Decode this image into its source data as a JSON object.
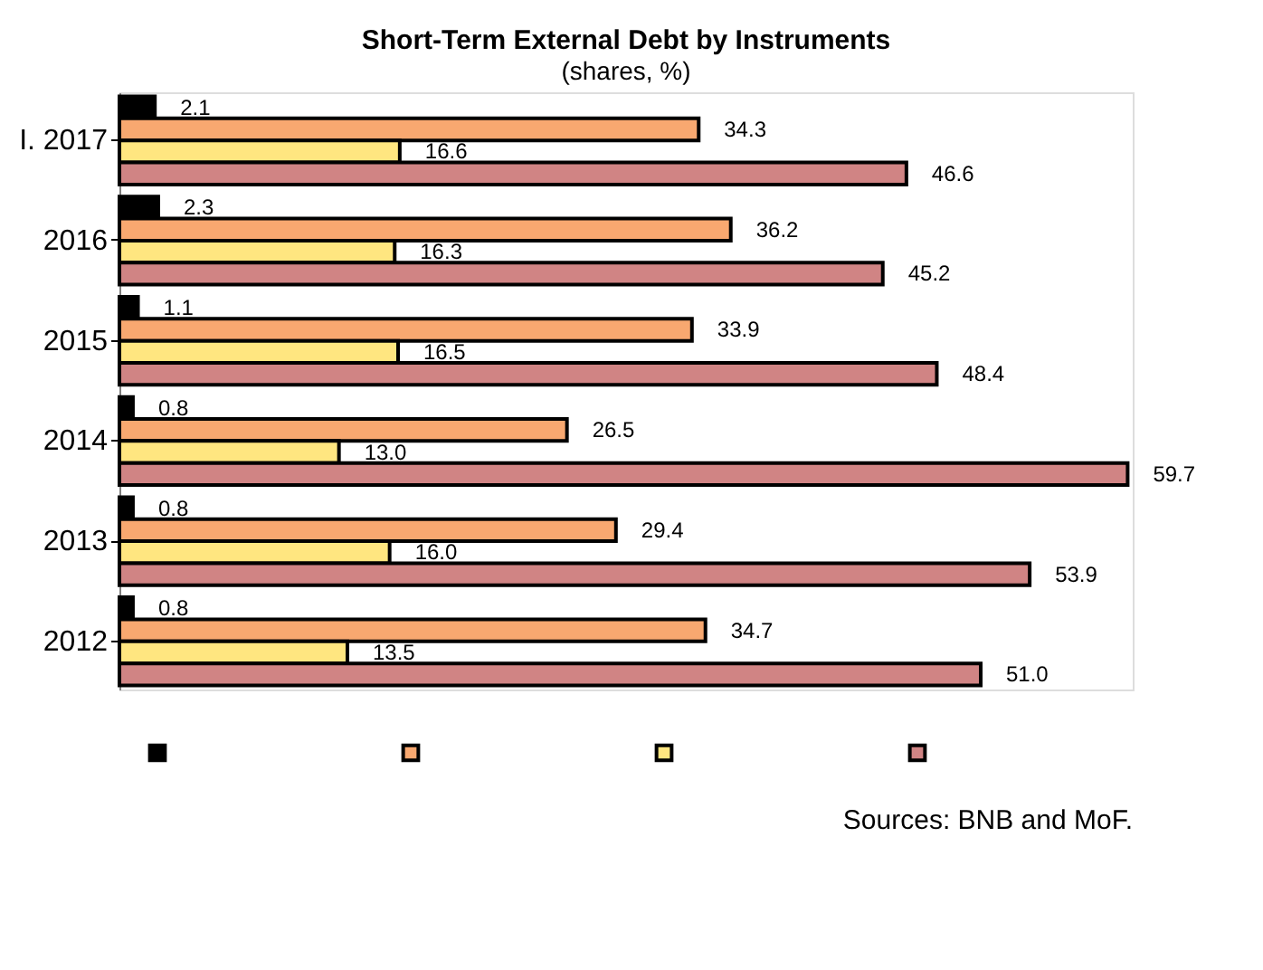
{
  "chart_data": {
    "type": "bar",
    "orientation": "horizontal",
    "title": "Short-Term External Debt by Instruments",
    "subtitle": "(shares, %)",
    "categories": [
      "I. 2017",
      "2016",
      "2015",
      "2014",
      "2013",
      "2012"
    ],
    "series": [
      {
        "color": "#000000",
        "values": [
          2.1,
          2.3,
          1.1,
          0.8,
          0.8,
          0.8
        ],
        "value_labels": [
          "2.1",
          "2.3",
          "1.1",
          "0.8",
          "0.8",
          "0.8"
        ]
      },
      {
        "color": "#f8a870",
        "values": [
          34.3,
          36.2,
          33.9,
          26.5,
          29.4,
          34.7
        ],
        "value_labels": [
          "34.3",
          "36.2",
          "33.9",
          "26.5",
          "29.4",
          "34.7"
        ]
      },
      {
        "color": "#ffe680",
        "values": [
          16.6,
          16.3,
          16.5,
          13.0,
          16.0,
          13.5
        ],
        "value_labels": [
          "16.6",
          "16.3",
          "16.5",
          "13.0",
          "16.0",
          "13.5"
        ]
      },
      {
        "color": "#d08484",
        "values": [
          46.6,
          45.2,
          48.4,
          59.7,
          53.9,
          51.0
        ],
        "value_labels": [
          "46.6",
          "45.2",
          "48.4",
          "59.7",
          "53.9",
          "51.0"
        ]
      }
    ],
    "grid": false,
    "tick_labels": "y",
    "annotations": [
      "Sources: BNB and MoF."
    ]
  }
}
